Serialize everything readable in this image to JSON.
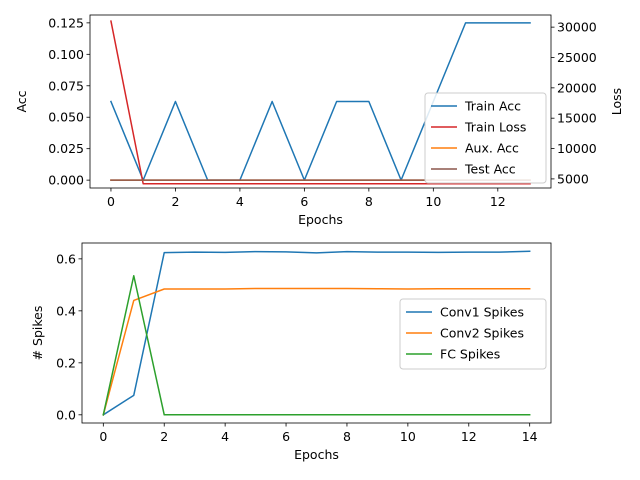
{
  "chart_data": [
    {
      "type": "line",
      "xlabel": "Epochs",
      "ylabel": "Acc",
      "y2label": "Loss",
      "xlim": [
        -0.65,
        13.65
      ],
      "ylim": [
        -0.00625,
        0.13125
      ],
      "y2lim": [
        3500,
        32000
      ],
      "xticks": [
        0,
        2,
        4,
        6,
        8,
        10,
        12
      ],
      "yticks": [
        0.0,
        0.025,
        0.05,
        0.075,
        0.1,
        0.125
      ],
      "ytick_labels": [
        "0.000",
        "0.025",
        "0.050",
        "0.075",
        "0.100",
        "0.125"
      ],
      "y2ticks": [
        5000,
        10000,
        15000,
        20000,
        25000,
        30000
      ],
      "grid": false,
      "legend_position": "center-right",
      "x": [
        0,
        1,
        2,
        3,
        4,
        5,
        6,
        7,
        8,
        9,
        10,
        11,
        12,
        13
      ],
      "series": [
        {
          "name": "Train Acc",
          "axis": "left",
          "color": "#1f77b4",
          "values": [
            0.0625,
            0,
            0.0625,
            0,
            0,
            0.0625,
            0,
            0.0625,
            0.0625,
            0,
            0.0625,
            0.125,
            0.125,
            0.125
          ]
        },
        {
          "name": "Train Loss",
          "axis": "right",
          "color": "#d62728",
          "values": [
            31000,
            4200,
            4200,
            4200,
            4200,
            4200,
            4200,
            4200,
            4200,
            4200,
            4200,
            4200,
            4200,
            4200
          ]
        },
        {
          "name": "Aux. Acc",
          "axis": "left",
          "color": "#ff7f0e",
          "values": [
            0,
            0,
            0,
            0,
            0,
            0,
            0,
            0,
            0,
            0,
            0,
            0,
            0,
            0
          ]
        },
        {
          "name": "Test Acc",
          "axis": "left",
          "color": "#8c564b",
          "values": [
            0,
            0,
            0,
            0,
            0,
            0,
            0,
            0,
            0,
            0,
            0,
            0,
            0,
            0
          ]
        }
      ]
    },
    {
      "type": "line",
      "xlabel": "Epochs",
      "ylabel": "# Spikes",
      "xlim": [
        -0.7,
        14.7
      ],
      "ylim": [
        -0.0315,
        0.661
      ],
      "xticks": [
        0,
        2,
        4,
        6,
        8,
        10,
        12,
        14
      ],
      "yticks": [
        0.0,
        0.2,
        0.4,
        0.6
      ],
      "ytick_labels": [
        "0.0",
        "0.2",
        "0.4",
        "0.6"
      ],
      "grid": false,
      "legend_position": "center-right",
      "x": [
        0,
        1,
        2,
        3,
        4,
        5,
        6,
        7,
        8,
        9,
        10,
        11,
        12,
        13,
        14
      ],
      "series": [
        {
          "name": "Conv1 Spikes",
          "color": "#1f77b4",
          "values": [
            0,
            0.075,
            0.624,
            0.626,
            0.625,
            0.628,
            0.627,
            0.623,
            0.628,
            0.626,
            0.626,
            0.625,
            0.626,
            0.626,
            0.629
          ]
        },
        {
          "name": "Conv2 Spikes",
          "color": "#ff7f0e",
          "values": [
            0,
            0.44,
            0.484,
            0.484,
            0.484,
            0.486,
            0.486,
            0.486,
            0.486,
            0.485,
            0.484,
            0.485,
            0.485,
            0.485,
            0.485
          ]
        },
        {
          "name": "FC Spikes",
          "color": "#2ca02c",
          "values": [
            0,
            0.535,
            0,
            0,
            0,
            0,
            0,
            0,
            0,
            0,
            0,
            0,
            0,
            0,
            0
          ]
        }
      ]
    }
  ]
}
